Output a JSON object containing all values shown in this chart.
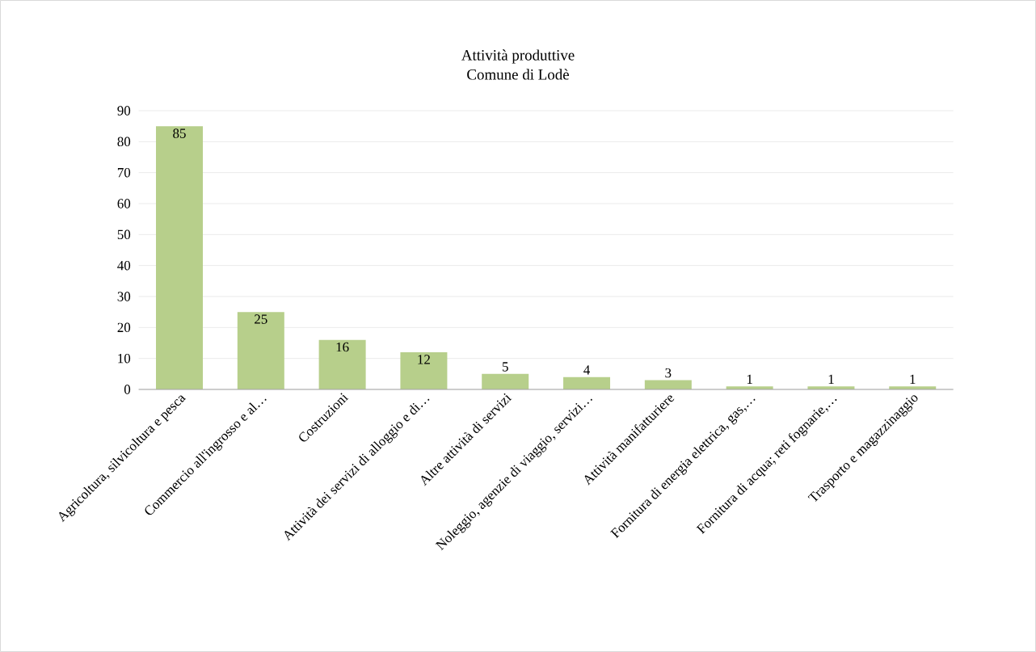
{
  "chart_data": {
    "type": "bar",
    "title": "Attività produttive\nComune di Lodè",
    "categories": [
      "Agricoltura, silvicoltura e pesca",
      "Commercio all'ingrosso e al…",
      "Costruzioni",
      "Attività dei servizi di alloggio e di…",
      "Altre attività di servizi",
      "Noleggio, agenzie di viaggio, servizi…",
      "Attività manifatturiere",
      "Fornitura di energia elettrica, gas,…",
      "Fornitura di acqua; reti fognarie,…",
      "Trasporto e magazzinaggio"
    ],
    "values": [
      85,
      25,
      16,
      12,
      5,
      4,
      3,
      1,
      1,
      1
    ],
    "color": "#b7cf8b",
    "ylim": [
      0,
      90
    ],
    "yticks": [
      0,
      10,
      20,
      30,
      40,
      50,
      60,
      70,
      80,
      90
    ],
    "grid": "y",
    "data_labels": true
  }
}
